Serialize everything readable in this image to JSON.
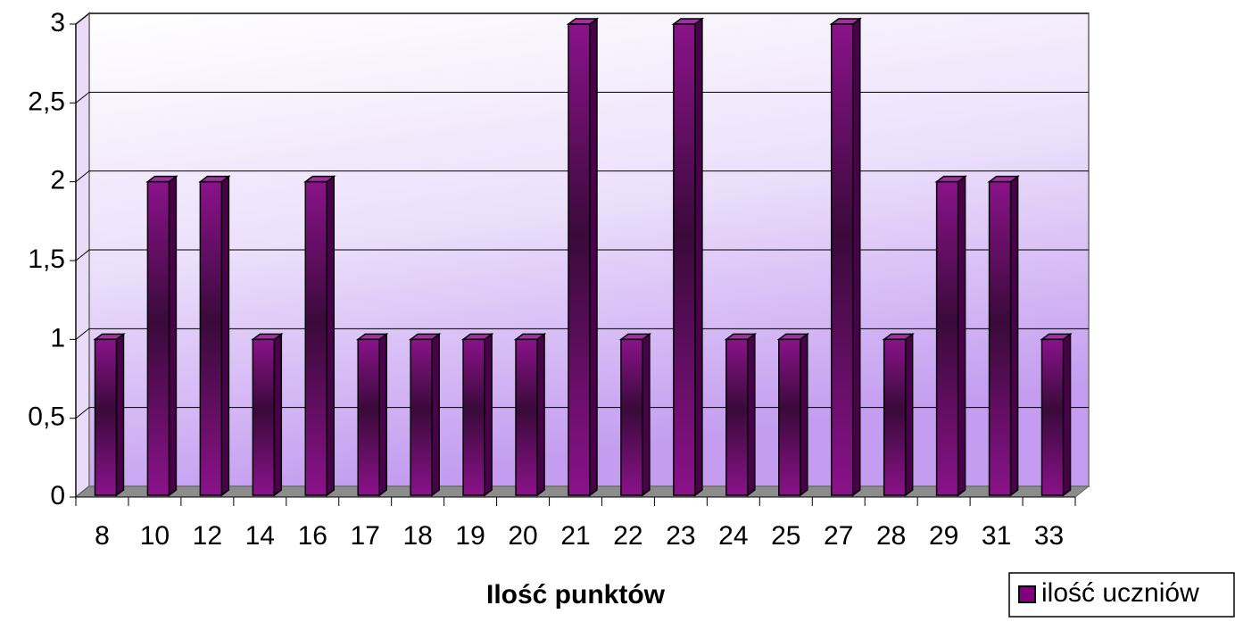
{
  "chart_data": {
    "type": "bar3d",
    "x_label": "Ilość punktów",
    "categories": [
      "8",
      "10",
      "12",
      "14",
      "16",
      "17",
      "18",
      "19",
      "20",
      "21",
      "22",
      "23",
      "24",
      "25",
      "27",
      "28",
      "29",
      "31",
      "33"
    ],
    "series": [
      {
        "name": "ilość uczniów",
        "color": "#800080",
        "values": [
          1,
          2,
          2,
          1,
          2,
          1,
          1,
          1,
          1,
          3,
          1,
          3,
          1,
          1,
          3,
          1,
          2,
          2,
          1
        ]
      }
    ],
    "ylim": [
      0,
      3
    ],
    "yticks": [
      0,
      {
        "value": 0.5,
        "label": "0,5"
      },
      1,
      {
        "value": 1.5,
        "label": "1,5"
      },
      2,
      {
        "value": 2.5,
        "label": "2,5"
      },
      3
    ],
    "grid": true,
    "legend": "bottom-right"
  }
}
